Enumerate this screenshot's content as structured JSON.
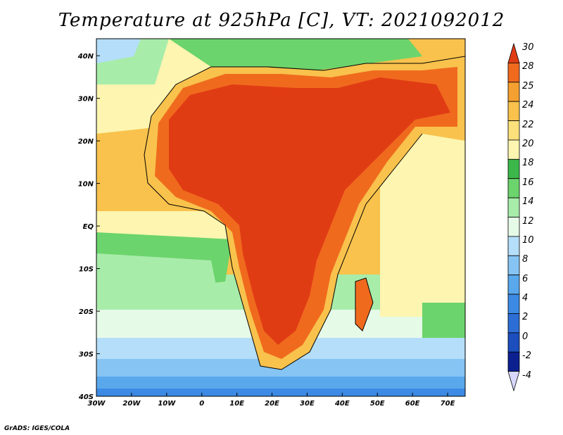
{
  "title": "Temperature at 925hPa [C], VT: 2021092012",
  "credit": "GrADS: IGES/COLA",
  "map": {
    "lon_labels": [
      "30W",
      "20W",
      "10W",
      "0",
      "10E",
      "20E",
      "30E",
      "40E",
      "50E",
      "60E",
      "70E"
    ],
    "lat_labels": [
      "40N",
      "30N",
      "20N",
      "10N",
      "EQ",
      "10S",
      "20S",
      "30S",
      "40S"
    ],
    "lon_range": [
      -30,
      75
    ],
    "lat_range": [
      -40,
      44
    ]
  },
  "colorbar": {
    "labels": [
      "30",
      "28",
      "25",
      "24",
      "22",
      "20",
      "18",
      "16",
      "14",
      "12",
      "10",
      "8",
      "6",
      "4",
      "2",
      "0",
      "-2",
      "-4"
    ],
    "colors": [
      "#e03c14",
      "#f06a1e",
      "#f5a030",
      "#f8c24c",
      "#fbe07c",
      "#fdf5b0",
      "#3cb84a",
      "#6cd46c",
      "#a8ecaa",
      "#e6fae8",
      "#b4defa",
      "#86c4f4",
      "#5aa8ec",
      "#3c8ae4",
      "#2c6ed6",
      "#1c4ebe",
      "#0c2090",
      "#d8d8ff"
    ]
  }
}
